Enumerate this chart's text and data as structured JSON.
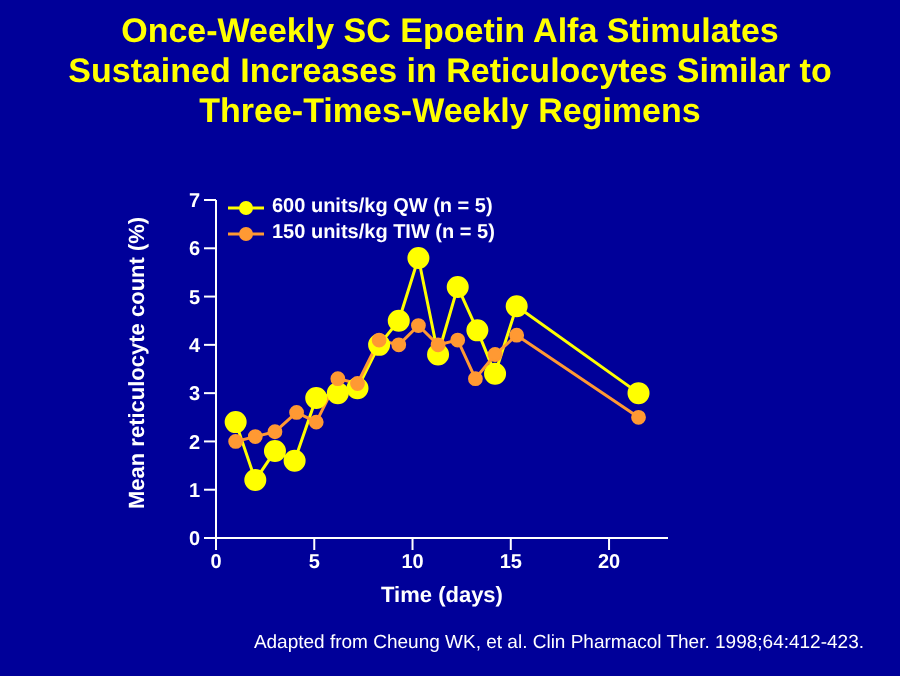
{
  "chart_data": {
    "type": "line",
    "title": "Once-Weekly SC Epoetin Alfa Stimulates Sustained Increases in Reticulocytes Similar to Three-Times-Weekly Regimens",
    "xlabel": "Time (days)",
    "ylabel": "Mean reticulocyte count (%)",
    "annotations": [
      "Adapted from Cheung WK, et al. Clin Pharmacol Ther. 1998;64:412-423."
    ],
    "series": [
      {
        "name": "600 units/kg QW (n = 5)",
        "color": "#ffff00",
        "x": [
          1,
          2,
          3,
          4,
          5.1,
          6.2,
          7.2,
          8.3,
          9.3,
          10.3,
          11.3,
          12.3,
          13.3,
          14.2,
          15.3,
          21.5
        ],
        "values": [
          2.4,
          1.2,
          1.8,
          1.6,
          2.9,
          3.0,
          3.1,
          4.0,
          4.5,
          5.8,
          3.8,
          5.2,
          4.3,
          3.4,
          4.8,
          3.0
        ]
      },
      {
        "name": "150 units/kg TIW (n = 5)",
        "color": "#ff9933",
        "x": [
          1,
          2,
          3,
          4.1,
          5.1,
          6.2,
          7.2,
          8.3,
          9.3,
          10.3,
          11.3,
          12.3,
          13.2,
          14.2,
          15.3,
          21.5
        ],
        "values": [
          2.0,
          2.1,
          2.2,
          2.6,
          2.4,
          3.3,
          3.2,
          4.1,
          4.0,
          4.4,
          4.0,
          4.1,
          3.3,
          3.8,
          4.2,
          2.5
        ]
      }
    ],
    "xlim": [
      0,
      23
    ],
    "xticks": [
      0,
      5,
      10,
      15,
      20
    ],
    "ylim": [
      0,
      7
    ],
    "yticks": [
      0,
      1,
      2,
      3,
      4,
      5,
      6,
      7
    ],
    "legend": "top left",
    "marker": "circle",
    "line_style": "solid"
  }
}
